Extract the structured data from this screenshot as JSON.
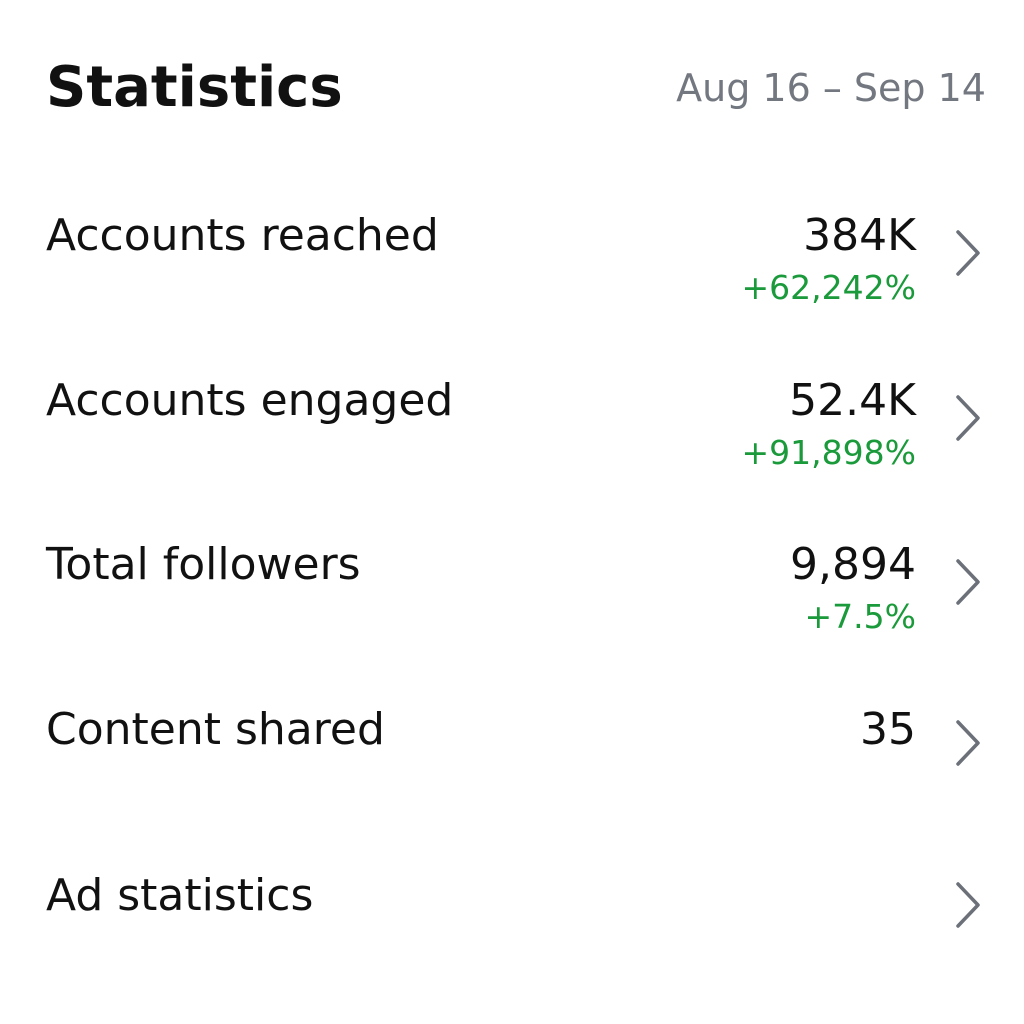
{
  "header": {
    "title": "Statistics",
    "date_range": "Aug 16 – Sep 14"
  },
  "stats": [
    {
      "label": "Accounts reached",
      "value": "384K",
      "change": "+62,242%",
      "icon": "chevron-right-icon"
    },
    {
      "label": "Accounts engaged",
      "value": "52.4K",
      "change": "+91,898%",
      "icon": "chevron-right-icon"
    },
    {
      "label": "Total followers",
      "value": "9,894",
      "change": "+7.5%",
      "icon": "chevron-right-icon"
    },
    {
      "label": "Content shared",
      "value": "35",
      "icon": "chevron-right-icon"
    },
    {
      "label": "Ad statistics",
      "icon": "chevron-right-icon"
    }
  ],
  "colors": {
    "text_primary": "#111111",
    "text_secondary": "#737780",
    "positive_change": "#1a9a3a",
    "chevron": "#6b7079"
  }
}
